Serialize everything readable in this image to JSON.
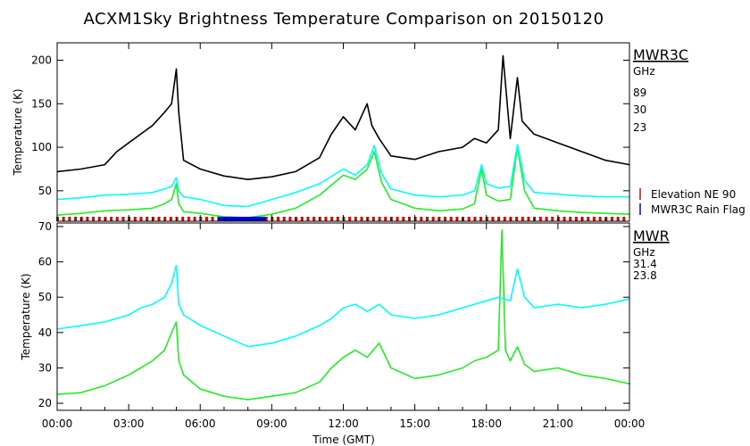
{
  "chart_data": [
    {
      "type": "line",
      "title": "ACXM1Sky Brightness Temperature Comparison on 20150120",
      "ylabel": "Temperature (K)",
      "ylim": [
        15,
        220
      ],
      "yticks": [
        50,
        100,
        150,
        200
      ],
      "xlim": [
        "00:00",
        "24:00"
      ],
      "instrument_label": "MWR3C",
      "unit_label": "GHz",
      "series": [
        {
          "name": "89",
          "color": "#000000",
          "x": [
            0,
            1,
            2,
            2.5,
            3,
            3.5,
            4,
            4.5,
            4.8,
            5,
            5.1,
            5.3,
            6,
            7,
            8,
            9,
            10,
            11,
            11.5,
            12,
            12.5,
            13,
            13.2,
            13.5,
            14,
            15,
            16,
            17,
            17.5,
            18,
            18.5,
            18.7,
            19,
            19.3,
            19.5,
            20,
            20.5,
            21,
            22,
            23,
            24
          ],
          "y": [
            72,
            75,
            80,
            95,
            105,
            115,
            125,
            140,
            150,
            190,
            140,
            85,
            75,
            67,
            63,
            66,
            72,
            88,
            115,
            135,
            120,
            150,
            125,
            110,
            90,
            86,
            95,
            100,
            110,
            105,
            120,
            205,
            110,
            180,
            130,
            115,
            110,
            105,
            95,
            85,
            80
          ]
        },
        {
          "name": "30",
          "color": "#22ee22",
          "x": [
            0,
            1,
            2,
            3,
            4,
            4.5,
            4.8,
            5,
            5.1,
            5.3,
            6,
            7,
            8,
            9,
            10,
            11,
            12,
            12.5,
            13,
            13.3,
            13.6,
            14,
            15,
            16,
            17,
            17.5,
            17.8,
            18,
            18.5,
            19,
            19.3,
            19.6,
            20,
            21,
            22,
            23,
            24
          ],
          "y": [
            22,
            24,
            27,
            28,
            30,
            35,
            40,
            58,
            35,
            26,
            24,
            20,
            19,
            23,
            30,
            45,
            68,
            63,
            75,
            95,
            60,
            40,
            30,
            27,
            29,
            35,
            75,
            45,
            38,
            40,
            100,
            50,
            30,
            27,
            25,
            24,
            23
          ]
        },
        {
          "name": "23",
          "color": "#00ffff",
          "x": [
            0,
            1,
            2,
            3,
            4,
            4.5,
            4.8,
            5,
            5.1,
            5.3,
            6,
            7,
            8,
            9,
            10,
            11,
            12,
            12.5,
            13,
            13.3,
            13.6,
            14,
            15,
            16,
            17,
            17.5,
            17.8,
            18,
            18.5,
            19,
            19.3,
            19.6,
            20,
            21,
            22,
            23,
            24
          ],
          "y": [
            40,
            42,
            45,
            46,
            48,
            52,
            55,
            65,
            50,
            43,
            40,
            33,
            32,
            40,
            48,
            58,
            75,
            68,
            80,
            102,
            70,
            52,
            45,
            43,
            45,
            50,
            80,
            58,
            53,
            55,
            103,
            62,
            48,
            46,
            44,
            43,
            43
          ]
        }
      ],
      "flag_bands": [
        {
          "name": "Elevation NE 90",
          "color": "#dd0000"
        },
        {
          "name": "MWR3C Rain Flag",
          "color": "#0000dd",
          "segments": [
            [
              6.75,
              8.75
            ]
          ]
        }
      ]
    },
    {
      "type": "line",
      "ylabel": "Temperature (K)",
      "xlabel": "Time (GMT)",
      "ylim": [
        18,
        71
      ],
      "yticks": [
        20,
        30,
        40,
        50,
        60,
        70
      ],
      "xticks": [
        "00:00",
        "03:00",
        "06:00",
        "09:00",
        "12:00",
        "15:00",
        "18:00",
        "21:00",
        "00:00"
      ],
      "instrument_label": "MWR",
      "unit_label": "GHz",
      "series": [
        {
          "name": "31.4",
          "color": "#22ee22",
          "x": [
            0,
            1,
            2,
            3,
            3.5,
            4,
            4.5,
            4.8,
            5,
            5.1,
            5.3,
            6,
            7,
            8,
            9,
            10,
            11,
            11.5,
            12,
            12.5,
            13,
            13.5,
            14,
            15,
            16,
            17,
            17.5,
            18,
            18.5,
            18.65,
            18.8,
            19,
            19.3,
            19.6,
            20,
            21,
            22,
            23,
            24
          ],
          "y": [
            22.5,
            23,
            25,
            28,
            30,
            32,
            35,
            40,
            43,
            32,
            28,
            24,
            22,
            21,
            22,
            23,
            26,
            30,
            33,
            35,
            33,
            37,
            30,
            27,
            28,
            30,
            32,
            33,
            35,
            69,
            35,
            32,
            36,
            31,
            29,
            30,
            28,
            27,
            25.5
          ]
        },
        {
          "name": "23.8",
          "color": "#00ffff",
          "x": [
            0,
            1,
            2,
            3,
            3.5,
            4,
            4.5,
            4.8,
            5,
            5.1,
            5.3,
            6,
            7,
            8,
            9,
            10,
            11,
            11.5,
            12,
            12.5,
            13,
            13.5,
            14,
            15,
            16,
            17,
            17.5,
            18,
            18.5,
            19,
            19.3,
            19.6,
            20,
            21,
            22,
            23,
            24
          ],
          "y": [
            41,
            42,
            43,
            45,
            47,
            48,
            50,
            54,
            59,
            48,
            45,
            42,
            39,
            36,
            37,
            39,
            42,
            44,
            47,
            48,
            46,
            48,
            45,
            44,
            45,
            47,
            48,
            49,
            50,
            49,
            58,
            50,
            47,
            48,
            47,
            48,
            49.5
          ]
        }
      ]
    }
  ]
}
